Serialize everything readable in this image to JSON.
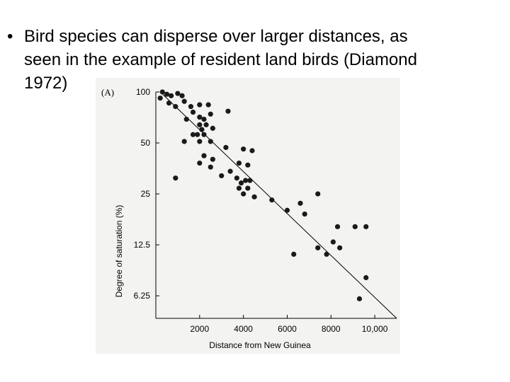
{
  "slide": {
    "bullet": "•",
    "lines": [
      "Bird species can disperse over larger distances, as",
      "seen in the example of resident land birds (Diamond",
      "1972)"
    ]
  },
  "chart_data": {
    "type": "scatter",
    "panel_label": "(A)",
    "xlabel": "Distance from New Guinea",
    "ylabel": "Degree of saturation (%)",
    "x_ticks": [
      2000,
      4000,
      6000,
      8000,
      10000
    ],
    "x_tick_labels": [
      "2000",
      "4000",
      "6000",
      "8000",
      "10,000"
    ],
    "y_ticks": [
      100,
      50,
      25,
      12.5,
      6.25
    ],
    "y_tick_labels": [
      "100",
      "50",
      "25",
      "12.5",
      "6.25"
    ],
    "y_scale": "log",
    "xlim": [
      0,
      11000
    ],
    "ylim": [
      4.6,
      100
    ],
    "grid": false,
    "trend_line": {
      "x": [
        200,
        11000
      ],
      "y": [
        100,
        4.6
      ]
    },
    "points": [
      {
        "x": 200,
        "y": 92
      },
      {
        "x": 300,
        "y": 100
      },
      {
        "x": 500,
        "y": 97
      },
      {
        "x": 700,
        "y": 95
      },
      {
        "x": 1000,
        "y": 98
      },
      {
        "x": 1200,
        "y": 95
      },
      {
        "x": 600,
        "y": 86
      },
      {
        "x": 900,
        "y": 82
      },
      {
        "x": 1300,
        "y": 88
      },
      {
        "x": 1600,
        "y": 82
      },
      {
        "x": 2000,
        "y": 84
      },
      {
        "x": 2400,
        "y": 84
      },
      {
        "x": 1700,
        "y": 76
      },
      {
        "x": 2500,
        "y": 74
      },
      {
        "x": 3300,
        "y": 77
      },
      {
        "x": 2000,
        "y": 71
      },
      {
        "x": 2200,
        "y": 69
      },
      {
        "x": 1400,
        "y": 69
      },
      {
        "x": 2000,
        "y": 64
      },
      {
        "x": 2300,
        "y": 64
      },
      {
        "x": 2100,
        "y": 60
      },
      {
        "x": 2600,
        "y": 61
      },
      {
        "x": 1700,
        "y": 56
      },
      {
        "x": 1900,
        "y": 56
      },
      {
        "x": 2200,
        "y": 56
      },
      {
        "x": 2000,
        "y": 51
      },
      {
        "x": 2500,
        "y": 51
      },
      {
        "x": 1300,
        "y": 51
      },
      {
        "x": 3200,
        "y": 47
      },
      {
        "x": 4000,
        "y": 46
      },
      {
        "x": 4400,
        "y": 45
      },
      {
        "x": 2200,
        "y": 42
      },
      {
        "x": 2600,
        "y": 40
      },
      {
        "x": 2000,
        "y": 38
      },
      {
        "x": 3800,
        "y": 38
      },
      {
        "x": 4200,
        "y": 37
      },
      {
        "x": 2500,
        "y": 36
      },
      {
        "x": 3400,
        "y": 34
      },
      {
        "x": 3000,
        "y": 32
      },
      {
        "x": 3700,
        "y": 31
      },
      {
        "x": 900,
        "y": 31
      },
      {
        "x": 4100,
        "y": 30
      },
      {
        "x": 4300,
        "y": 30
      },
      {
        "x": 3900,
        "y": 29
      },
      {
        "x": 3800,
        "y": 27
      },
      {
        "x": 4200,
        "y": 27
      },
      {
        "x": 4000,
        "y": 25
      },
      {
        "x": 4500,
        "y": 24
      },
      {
        "x": 7400,
        "y": 25
      },
      {
        "x": 5300,
        "y": 23
      },
      {
        "x": 6600,
        "y": 22
      },
      {
        "x": 6000,
        "y": 20
      },
      {
        "x": 6800,
        "y": 19
      },
      {
        "x": 8300,
        "y": 16
      },
      {
        "x": 9100,
        "y": 16
      },
      {
        "x": 9600,
        "y": 16
      },
      {
        "x": 8100,
        "y": 13
      },
      {
        "x": 7400,
        "y": 12
      },
      {
        "x": 8400,
        "y": 12
      },
      {
        "x": 6300,
        "y": 11
      },
      {
        "x": 7800,
        "y": 11
      },
      {
        "x": 9600,
        "y": 8
      },
      {
        "x": 9300,
        "y": 6
      }
    ]
  }
}
